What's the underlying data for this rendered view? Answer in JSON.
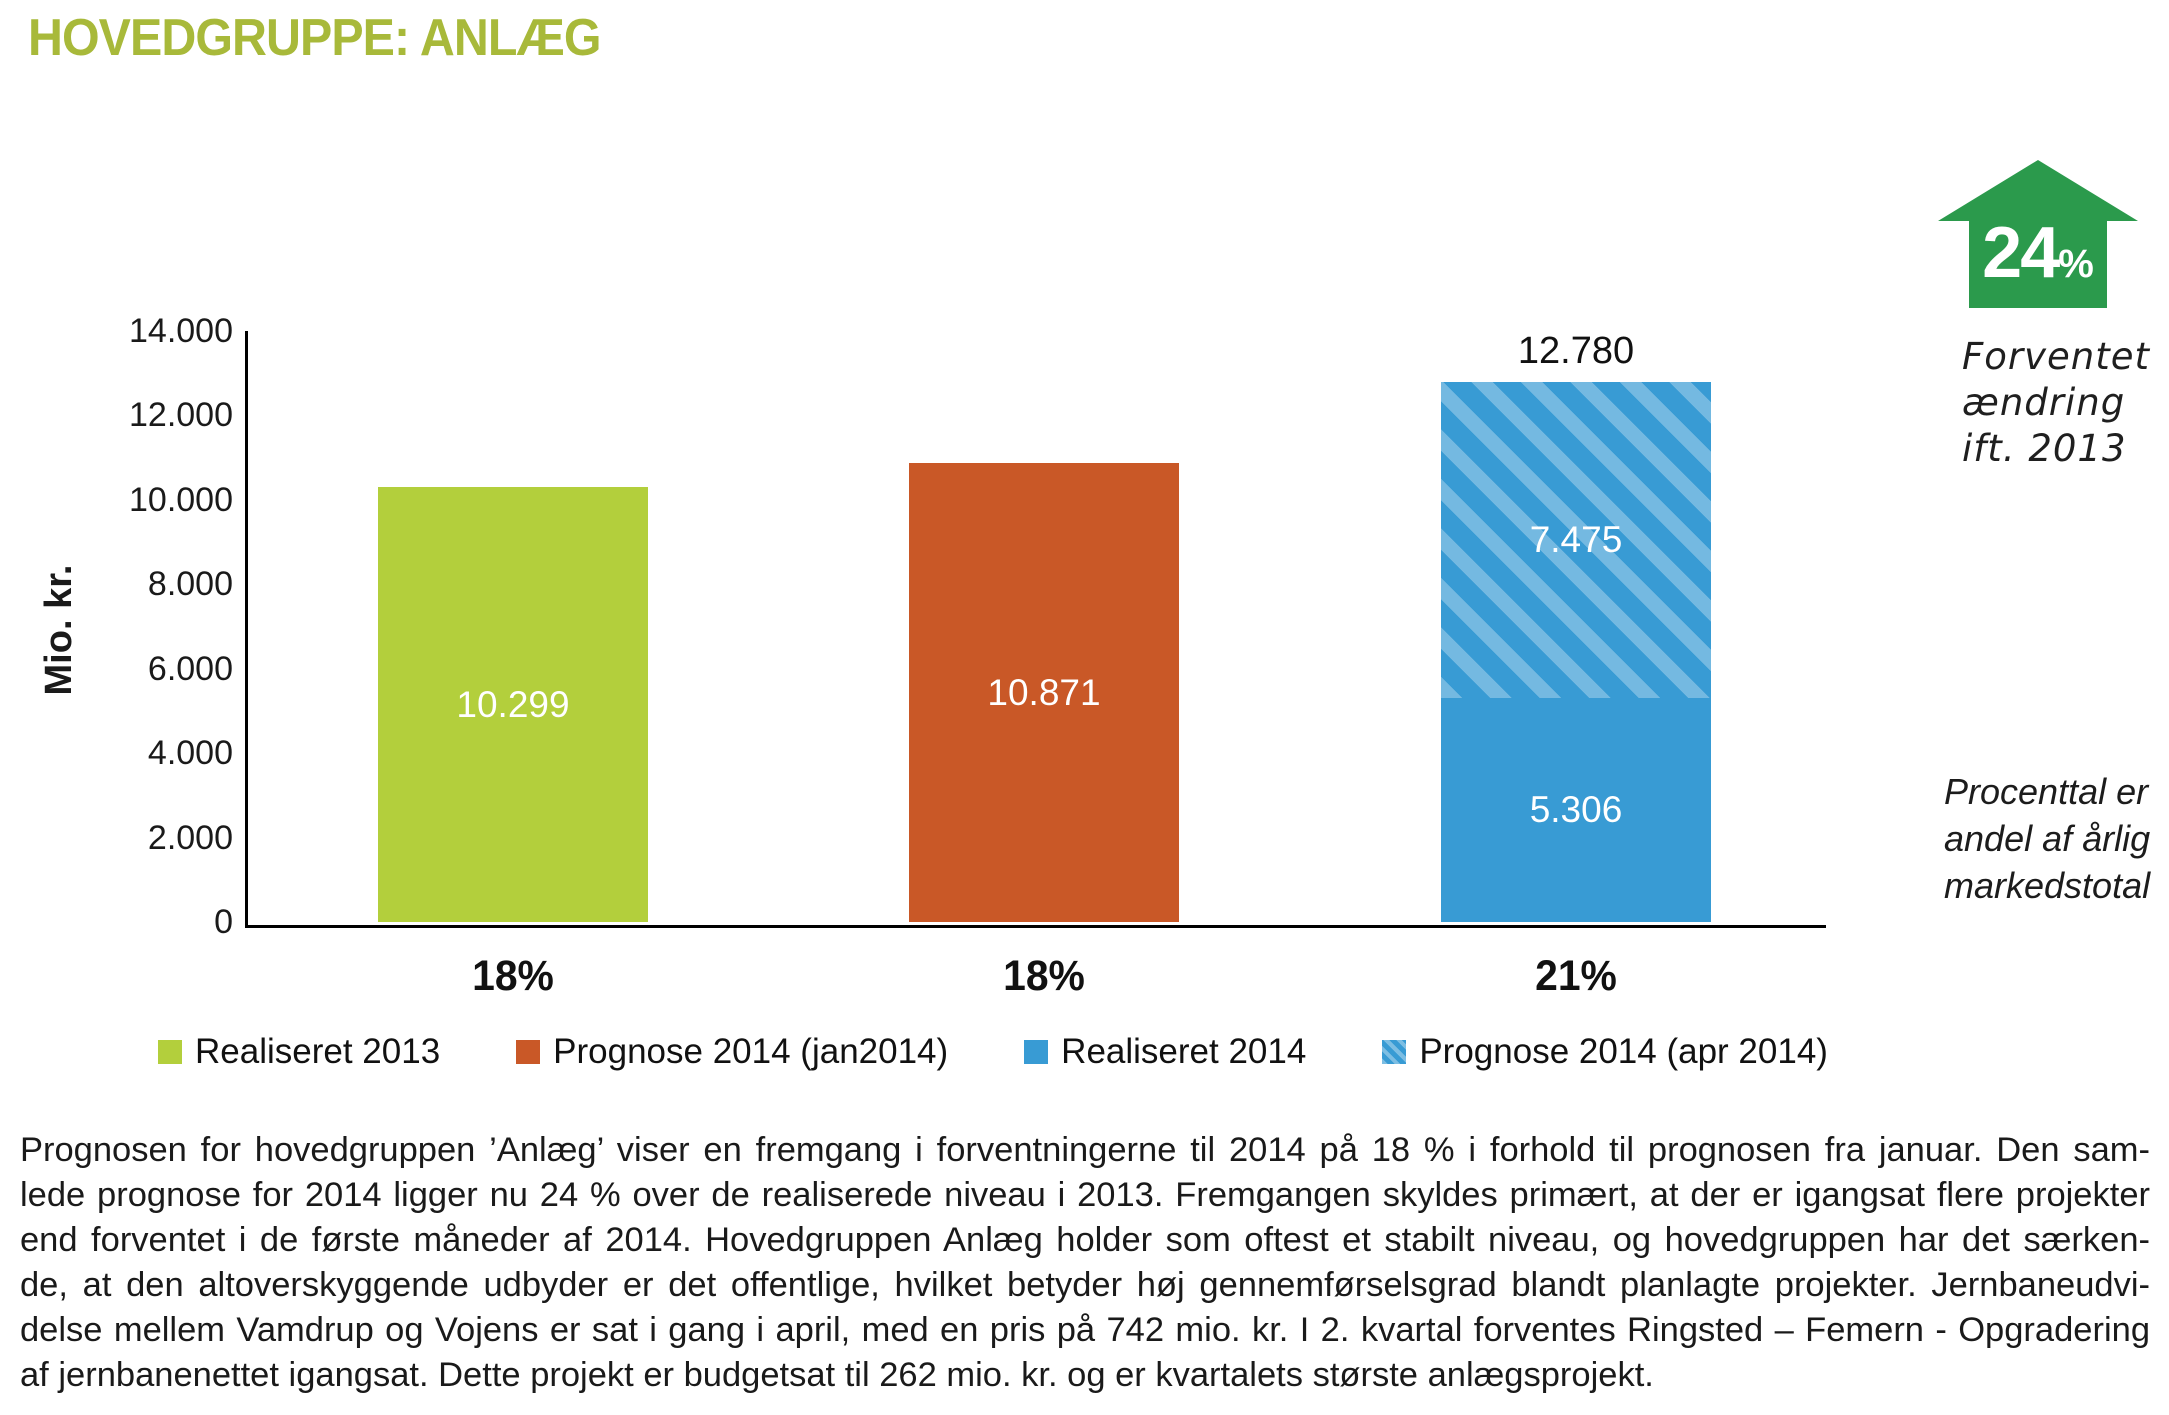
{
  "title": "HOVEDGRUPPE: ANLÆG",
  "colors": {
    "title_green": "#a8b93a",
    "bar_green": "#b3cf3c",
    "bar_orange": "#c95827",
    "bar_blue": "#389bd4",
    "arrow_green": "#2b9a4c",
    "axis_black": "#000000"
  },
  "chart_data": {
    "type": "bar",
    "title": "HOVEDGRUPPE: ANLÆG",
    "xlabel": "",
    "ylabel": "Mio. kr.",
    "ylim": [
      0,
      14000
    ],
    "ytick_step": 2000,
    "ytick_labels": [
      "0",
      "2.000",
      "4.000",
      "6.000",
      "8.000",
      "10.000",
      "12.000",
      "14.000"
    ],
    "grid": false,
    "legend_position": "bottom",
    "categories": [
      "18%",
      "18%",
      "21%"
    ],
    "bars": [
      {
        "category": "18%",
        "total_label": "",
        "segments": [
          {
            "series": "Realiseret 2013",
            "value": 10299,
            "label": "10.299",
            "color": "#b3cf3c",
            "hatch": false
          }
        ]
      },
      {
        "category": "18%",
        "total_label": "",
        "segments": [
          {
            "series": "Prognose 2014 (jan2014)",
            "value": 10871,
            "label": "10.871",
            "color": "#c95827",
            "hatch": false
          }
        ]
      },
      {
        "category": "21%",
        "total_label": "12.780",
        "segments": [
          {
            "series": "Realiseret 2014",
            "value": 5306,
            "label": "5.306",
            "color": "#389bd4",
            "hatch": false
          },
          {
            "series": "Prognose 2014 (apr 2014)",
            "value": 7475,
            "label": "7.475",
            "color": "#389bd4",
            "hatch": true
          }
        ]
      }
    ],
    "legend": [
      {
        "label": "Realiseret 2013",
        "color": "#b3cf3c",
        "hatch": false
      },
      {
        "label": "Prognose 2014 (jan2014)",
        "color": "#c95827",
        "hatch": false
      },
      {
        "label": "Realiseret 2014",
        "color": "#389bd4",
        "hatch": false
      },
      {
        "label": "Prognose 2014 (apr 2014)",
        "color": "#389bd4",
        "hatch": true
      }
    ]
  },
  "annotation": {
    "arrow_value": "24",
    "arrow_unit": "%",
    "caption_lines": [
      "Forventet",
      "ændring",
      "ift. 2013"
    ]
  },
  "side_note_lines": [
    "Procenttal er",
    "andel af årlig",
    "markedstotal"
  ],
  "paragraph_lines": [
    "Prognosen for hovedgruppen ’Anlæg’ viser en fremgang i forventningerne til 2014 på 18 % i forhold til prognosen fra januar. Den sam-",
    "lede prognose for 2014 ligger nu 24 % over de realiserede niveau i 2013. Fremgangen skyldes primært, at der er igangsat flere projekter",
    "end forventet i de første måneder af 2014. Hovedgruppen Anlæg holder som oftest et stabilt niveau, og hovedgruppen har det særken-",
    "de, at den altoverskyggende udbyder er det offentlige, hvilket betyder høj gennemførselsgrad blandt planlagte projekter. Jernbaneudvi-",
    "delse mellem Vamdrup og Vojens er sat i gang i april, med en pris på 742 mio. kr. I 2. kvartal forventes Ringsted – Femern - Opgradering",
    "af jernbanenettet igangsat. Dette projekt er budgetsat til 262 mio. kr. og er kvartalets største anlægsprojekt."
  ]
}
